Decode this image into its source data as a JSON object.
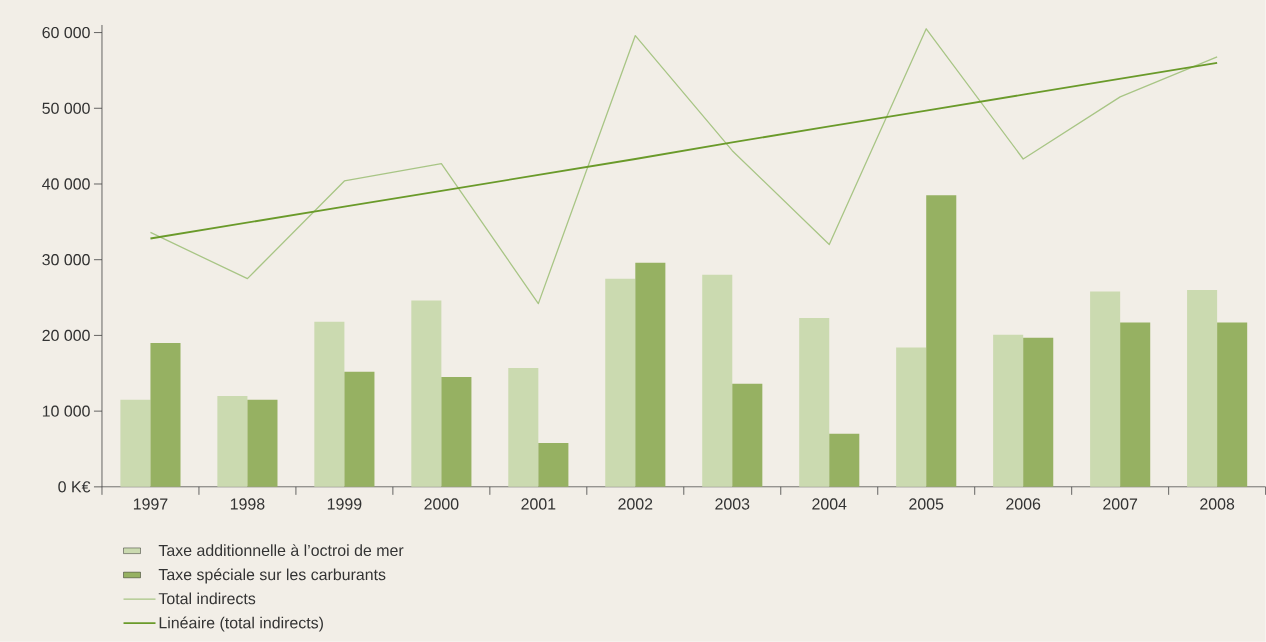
{
  "chart_data": {
    "type": "bar",
    "categories": [
      "1997",
      "1998",
      "1999",
      "2000",
      "2001",
      "2002",
      "2003",
      "2004",
      "2005",
      "2006",
      "2007",
      "2008"
    ],
    "series": [
      {
        "name": "Taxe additionnelle à l’octroi de mer",
        "color": "#cbdab0",
        "values": [
          11500,
          12000,
          21800,
          24600,
          15700,
          27500,
          28000,
          22300,
          18400,
          20100,
          25800,
          26000
        ]
      },
      {
        "name": "Taxe spéciale sur les carburants",
        "color": "#96b162",
        "values": [
          19000,
          11500,
          15200,
          14500,
          5800,
          29600,
          13600,
          7000,
          38500,
          19700,
          21700,
          21700
        ]
      },
      {
        "name": "Total indirects",
        "type": "line",
        "color": "#a8c585",
        "values": [
          33600,
          27500,
          40400,
          42700,
          24200,
          59600,
          44400,
          32000,
          60500,
          43300,
          51500,
          56800
        ]
      },
      {
        "name": "Linéaire (total indirects)",
        "type": "line",
        "color": "#6a9a2a",
        "values": [
          32800,
          34900,
          37000,
          39100,
          41200,
          43300,
          45500,
          47600,
          49700,
          51800,
          53900,
          56000
        ]
      }
    ],
    "ylim": [
      0,
      61000
    ],
    "yticks": [
      {
        "value": 0,
        "label": "0 K€"
      },
      {
        "value": 10000,
        "label": "10 000"
      },
      {
        "value": 20000,
        "label": "20 000"
      },
      {
        "value": 30000,
        "label": "30 000"
      },
      {
        "value": 40000,
        "label": "40 000"
      },
      {
        "value": 50000,
        "label": "50 000"
      },
      {
        "value": 60000,
        "label": "60 000"
      }
    ],
    "legend": "bottom"
  }
}
